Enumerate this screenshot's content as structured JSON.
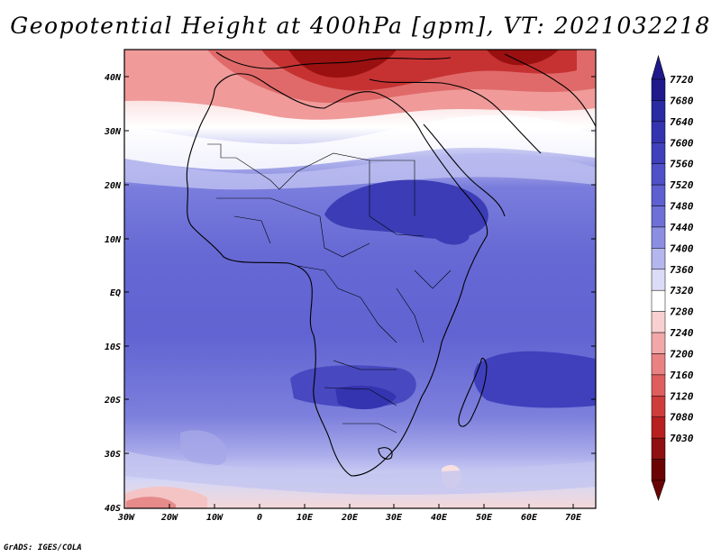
{
  "title": "Geopotential Height at 400hPa [gpm], VT: 2021032218",
  "credit": "GrADS: IGES/COLA",
  "map": {
    "lat_ticks": [
      "40N",
      "30N",
      "20N",
      "10N",
      "EQ",
      "10S",
      "20S",
      "30S",
      "40S"
    ],
    "lon_ticks": [
      "30W",
      "20W",
      "10W",
      "0",
      "10E",
      "20E",
      "30E",
      "40E",
      "50E",
      "60E",
      "70E"
    ]
  },
  "colorbar": {
    "labels": [
      "7720",
      "7680",
      "7640",
      "7600",
      "7560",
      "7520",
      "7480",
      "7440",
      "7400",
      "7360",
      "7320",
      "7280",
      "7240",
      "7200",
      "7160",
      "7120",
      "7080",
      "7030"
    ],
    "colors": [
      "#1e1a8c",
      "#2a2aa3",
      "#3434b0",
      "#4040bd",
      "#5050c8",
      "#5e5fd0",
      "#6e70d8",
      "#8c8ee2",
      "#b4b6ee",
      "#dcdcf6",
      "#ffffff",
      "#f9d0d0",
      "#f2a8a8",
      "#e98282",
      "#de5e5e",
      "#cf3c3c",
      "#b82020",
      "#8e1010",
      "#6a0404"
    ]
  }
}
